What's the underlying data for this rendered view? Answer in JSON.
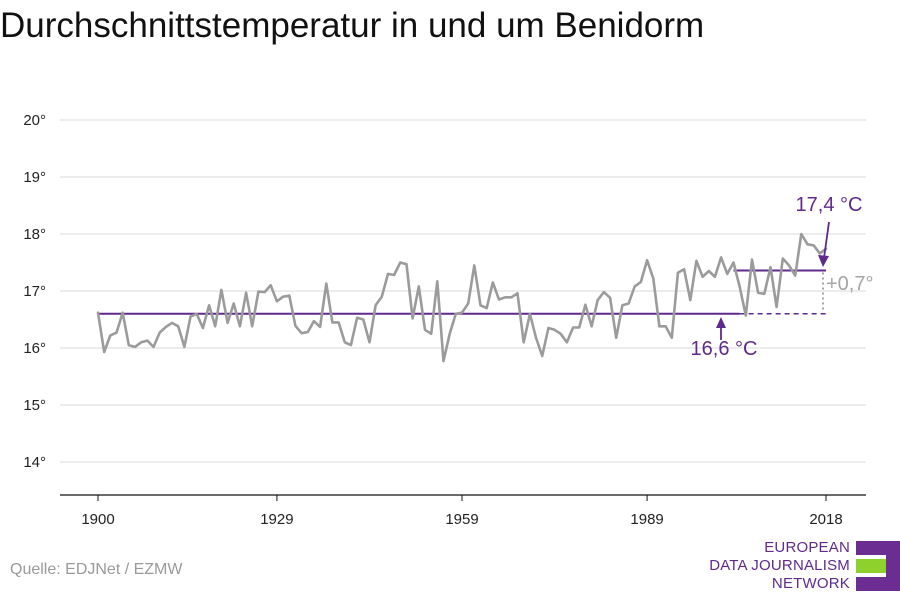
{
  "title": "Durchschnittstemperatur in und um Benidorm",
  "source": "Quelle: EDJNet / EZMW",
  "logo": {
    "lines": [
      "EUROPEAN",
      "DATA JOURNALISM",
      "NETWORK"
    ],
    "colors": [
      "#6b2d91",
      "#8ed12c",
      "#6b2d91"
    ]
  },
  "colors": {
    "series": "#9b9b9b",
    "accent": "#5f2a8c",
    "grid": "#d9d9d9"
  },
  "chart_data": {
    "type": "line",
    "title": "Durchschnittstemperatur in und um Benidorm",
    "xlabel": "",
    "ylabel": "",
    "xlim": [
      1900,
      2018
    ],
    "ylim": [
      14,
      20
    ],
    "x_ticks": [
      1900,
      1929,
      1959,
      1989,
      2018
    ],
    "y_ticks": [
      14,
      15,
      16,
      17,
      18,
      19,
      20
    ],
    "y_tick_labels": [
      "14°",
      "15°",
      "16°",
      "17°",
      "18°",
      "19°",
      "20°"
    ],
    "grid": true,
    "x": [
      1900,
      1901,
      1902,
      1903,
      1904,
      1905,
      1906,
      1907,
      1908,
      1909,
      1910,
      1911,
      1912,
      1913,
      1914,
      1915,
      1916,
      1917,
      1918,
      1919,
      1920,
      1921,
      1922,
      1923,
      1924,
      1925,
      1926,
      1927,
      1928,
      1929,
      1930,
      1931,
      1932,
      1933,
      1934,
      1935,
      1936,
      1937,
      1938,
      1939,
      1940,
      1941,
      1942,
      1943,
      1944,
      1945,
      1946,
      1947,
      1948,
      1949,
      1950,
      1951,
      1952,
      1953,
      1954,
      1955,
      1956,
      1957,
      1958,
      1959,
      1960,
      1961,
      1962,
      1963,
      1964,
      1965,
      1966,
      1967,
      1968,
      1969,
      1970,
      1971,
      1972,
      1973,
      1974,
      1975,
      1976,
      1977,
      1978,
      1979,
      1980,
      1981,
      1982,
      1983,
      1984,
      1985,
      1986,
      1987,
      1988,
      1989,
      1990,
      1991,
      1992,
      1993,
      1994,
      1995,
      1996,
      1997,
      1998,
      1999,
      2000,
      2001,
      2002,
      2003,
      2004,
      2005,
      2006,
      2007,
      2008,
      2009,
      2010,
      2011,
      2012,
      2013,
      2014,
      2015,
      2016,
      2017,
      2018
    ],
    "series": [
      {
        "values": [
          16.62,
          15.93,
          16.22,
          16.27,
          16.62,
          16.05,
          16.02,
          16.1,
          16.13,
          16.02,
          16.27,
          16.37,
          16.44,
          16.38,
          16.02,
          16.55,
          16.6,
          16.35,
          16.75,
          16.38,
          17.02,
          16.44,
          16.78,
          16.38,
          16.97,
          16.38,
          16.99,
          16.98,
          17.1,
          16.82,
          16.9,
          16.92,
          16.39,
          16.26,
          16.28,
          16.47,
          16.37,
          17.13,
          16.45,
          16.45,
          16.1,
          16.05,
          16.53,
          16.5,
          16.1,
          16.75,
          16.9,
          17.3,
          17.28,
          17.5,
          17.47,
          16.52,
          17.08,
          16.32,
          16.25,
          17.17,
          15.77,
          16.25,
          16.6,
          16.62,
          16.78,
          17.45,
          16.75,
          16.7,
          17.15,
          16.85,
          16.89,
          16.89,
          16.96,
          16.1,
          16.6,
          16.18,
          15.86,
          16.35,
          16.32,
          16.25,
          16.1,
          16.36,
          16.36,
          16.76,
          16.38,
          16.84,
          16.98,
          16.88,
          16.18,
          16.75,
          16.78,
          17.08,
          17.16,
          17.54,
          17.22,
          16.38,
          16.38,
          16.18,
          17.32,
          17.38,
          16.84,
          17.53,
          17.25,
          17.35,
          17.25,
          17.59,
          17.3,
          17.5,
          17.08,
          16.57,
          17.55,
          16.97,
          16.95,
          17.42,
          16.72,
          17.57,
          17.45,
          17.27,
          18.0,
          17.82,
          17.8,
          17.66,
          17.74
        ]
      }
    ],
    "reference_lines": [
      {
        "label": "16,6 °C",
        "value": 16.6,
        "x_start": 1900,
        "x_end": 2004,
        "style": "solid"
      },
      {
        "label": "",
        "value": 16.6,
        "x_start": 2004,
        "x_end": 2018,
        "style": "dashed"
      },
      {
        "label": "17,4 °C",
        "value": 17.36,
        "x_start": 2003,
        "x_end": 2018,
        "style": "solid"
      }
    ],
    "annotations": [
      {
        "text": "17,4 °C"
      },
      {
        "text": "16,6 °C"
      },
      {
        "text": "+0,7°"
      }
    ]
  }
}
